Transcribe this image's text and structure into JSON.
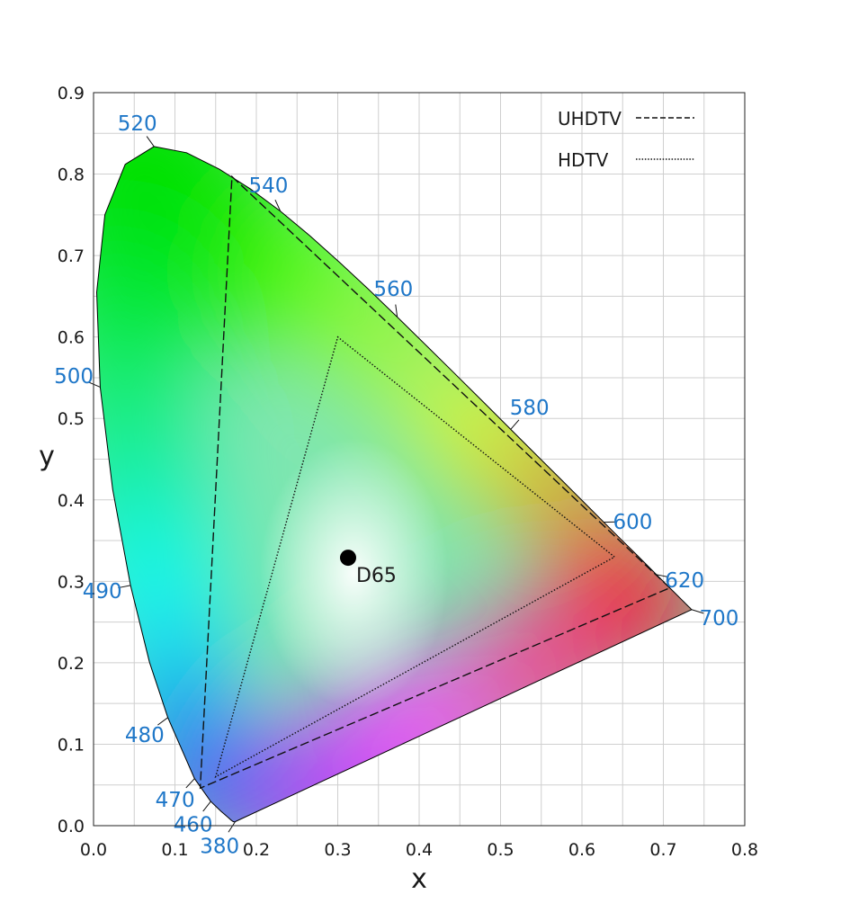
{
  "chart_data": {
    "type": "scatter",
    "xlabel": "x",
    "ylabel": "y",
    "xlim": [
      0.0,
      0.8
    ],
    "ylim": [
      0.0,
      0.9
    ],
    "x_ticks": [
      "0.0",
      "0.1",
      "0.2",
      "0.3",
      "0.4",
      "0.5",
      "0.6",
      "0.7",
      "0.8"
    ],
    "y_ticks": [
      "0.0",
      "0.1",
      "0.2",
      "0.3",
      "0.4",
      "0.5",
      "0.6",
      "0.7",
      "0.8",
      "0.9"
    ],
    "grid": true,
    "spectral_locus": [
      [
        0.1741,
        0.005
      ],
      [
        0.1738,
        0.0049
      ],
      [
        0.1733,
        0.0048
      ],
      [
        0.1726,
        0.0048
      ],
      [
        0.1714,
        0.0051
      ],
      [
        0.1689,
        0.0069
      ],
      [
        0.1644,
        0.0109
      ],
      [
        0.1566,
        0.0177
      ],
      [
        0.144,
        0.0297
      ],
      [
        0.1241,
        0.0578
      ],
      [
        0.0913,
        0.1327
      ],
      [
        0.0687,
        0.2007
      ],
      [
        0.0454,
        0.295
      ],
      [
        0.0235,
        0.4127
      ],
      [
        0.0082,
        0.5384
      ],
      [
        0.0039,
        0.6548
      ],
      [
        0.0139,
        0.7502
      ],
      [
        0.0389,
        0.812
      ],
      [
        0.0743,
        0.8338
      ],
      [
        0.1142,
        0.8262
      ],
      [
        0.1547,
        0.8059
      ],
      [
        0.1929,
        0.7816
      ],
      [
        0.2296,
        0.7543
      ],
      [
        0.2658,
        0.7243
      ],
      [
        0.3016,
        0.6923
      ],
      [
        0.3373,
        0.6589
      ],
      [
        0.3731,
        0.6245
      ],
      [
        0.4087,
        0.5896
      ],
      [
        0.4441,
        0.5547
      ],
      [
        0.4788,
        0.5202
      ],
      [
        0.5125,
        0.4866
      ],
      [
        0.5448,
        0.4544
      ],
      [
        0.5752,
        0.4242
      ],
      [
        0.6029,
        0.3965
      ],
      [
        0.627,
        0.3725
      ],
      [
        0.6482,
        0.3514
      ],
      [
        0.6658,
        0.334
      ],
      [
        0.6801,
        0.3197
      ],
      [
        0.6915,
        0.3083
      ],
      [
        0.7006,
        0.2993
      ],
      [
        0.7079,
        0.292
      ],
      [
        0.714,
        0.2859
      ],
      [
        0.719,
        0.2809
      ],
      [
        0.723,
        0.277
      ],
      [
        0.726,
        0.274
      ],
      [
        0.7283,
        0.2717
      ],
      [
        0.73,
        0.27
      ],
      [
        0.7311,
        0.2689
      ],
      [
        0.732,
        0.268
      ],
      [
        0.7327,
        0.2673
      ],
      [
        0.7334,
        0.2666
      ],
      [
        0.734,
        0.266
      ],
      [
        0.7344,
        0.2656
      ],
      [
        0.7346,
        0.2654
      ],
      [
        0.7347,
        0.2653
      ]
    ],
    "wavelength_labels": [
      {
        "label": "380",
        "x": 0.1741,
        "y": 0.005
      },
      {
        "label": "460",
        "x": 0.144,
        "y": 0.0297
      },
      {
        "label": "470",
        "x": 0.1241,
        "y": 0.0578
      },
      {
        "label": "480",
        "x": 0.0913,
        "y": 0.1327
      },
      {
        "label": "490",
        "x": 0.0454,
        "y": 0.295
      },
      {
        "label": "500",
        "x": 0.0082,
        "y": 0.5384
      },
      {
        "label": "520",
        "x": 0.0743,
        "y": 0.8338
      },
      {
        "label": "540",
        "x": 0.2296,
        "y": 0.7543
      },
      {
        "label": "560",
        "x": 0.3731,
        "y": 0.6245
      },
      {
        "label": "580",
        "x": 0.5125,
        "y": 0.4866
      },
      {
        "label": "600",
        "x": 0.627,
        "y": 0.3725
      },
      {
        "label": "620",
        "x": 0.6915,
        "y": 0.3083
      },
      {
        "label": "700",
        "x": 0.7347,
        "y": 0.2653
      }
    ],
    "series": [
      {
        "name": "UHDTV",
        "style": "dashed",
        "points": [
          [
            0.708,
            0.292
          ],
          [
            0.17,
            0.797
          ],
          [
            0.131,
            0.046
          ]
        ]
      },
      {
        "name": "HDTV",
        "style": "dotted",
        "points": [
          [
            0.64,
            0.33
          ],
          [
            0.3,
            0.6
          ],
          [
            0.15,
            0.06
          ]
        ]
      }
    ],
    "white_point": {
      "label": "D65",
      "x": 0.3127,
      "y": 0.329
    },
    "legend": {
      "position": "top-right",
      "entries": [
        "UHDTV",
        "HDTV"
      ]
    }
  }
}
